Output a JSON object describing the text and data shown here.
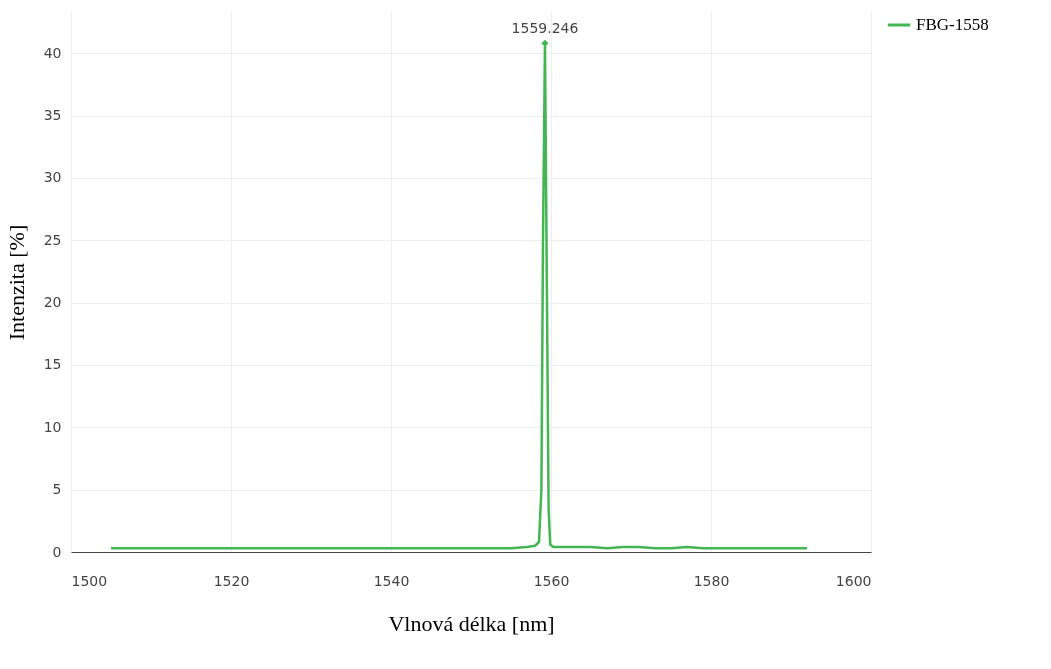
{
  "chart_data": {
    "type": "line",
    "xlabel": "Vlnová délka [nm]",
    "ylabel": "Intenzita [%]",
    "xlim": [
      1500,
      1600
    ],
    "xticks": [
      1500,
      1520,
      1540,
      1560,
      1580,
      1600
    ],
    "ylim": [
      0,
      43.3
    ],
    "yticks": [
      0,
      5,
      10,
      15,
      20,
      25,
      30,
      35,
      40
    ],
    "grid": true,
    "legend": "top right",
    "marker": "none",
    "line_style": "solid",
    "annotations": [
      {
        "text": "1559.246",
        "x": 1559.246,
        "y": 40.8
      }
    ],
    "series": [
      {
        "name": "FBG-1558",
        "color": "#44b553",
        "x": [
          1505,
          1507,
          1509,
          1511,
          1513,
          1515,
          1517,
          1519,
          1521,
          1523,
          1525,
          1527,
          1529,
          1531,
          1533,
          1535,
          1537,
          1539,
          1541,
          1543,
          1545,
          1547,
          1549,
          1551,
          1553,
          1555,
          1557,
          1558,
          1558.5,
          1558.8,
          1559.0,
          1559.246,
          1559.5,
          1559.7,
          1559.9,
          1560.3,
          1561,
          1563,
          1565,
          1567,
          1569,
          1571,
          1573,
          1575,
          1577,
          1579,
          1581,
          1583,
          1585,
          1587,
          1589,
          1591,
          1592
        ],
        "values": [
          0.3,
          0.3,
          0.3,
          0.3,
          0.3,
          0.3,
          0.3,
          0.3,
          0.3,
          0.3,
          0.3,
          0.3,
          0.3,
          0.3,
          0.3,
          0.3,
          0.3,
          0.3,
          0.3,
          0.3,
          0.3,
          0.3,
          0.3,
          0.3,
          0.3,
          0.3,
          0.4,
          0.5,
          0.8,
          5,
          25,
          40.8,
          20,
          3.5,
          0.6,
          0.4,
          0.4,
          0.4,
          0.4,
          0.3,
          0.4,
          0.4,
          0.3,
          0.3,
          0.4,
          0.3,
          0.3,
          0.3,
          0.3,
          0.3,
          0.3,
          0.3,
          0.3
        ]
      }
    ]
  }
}
